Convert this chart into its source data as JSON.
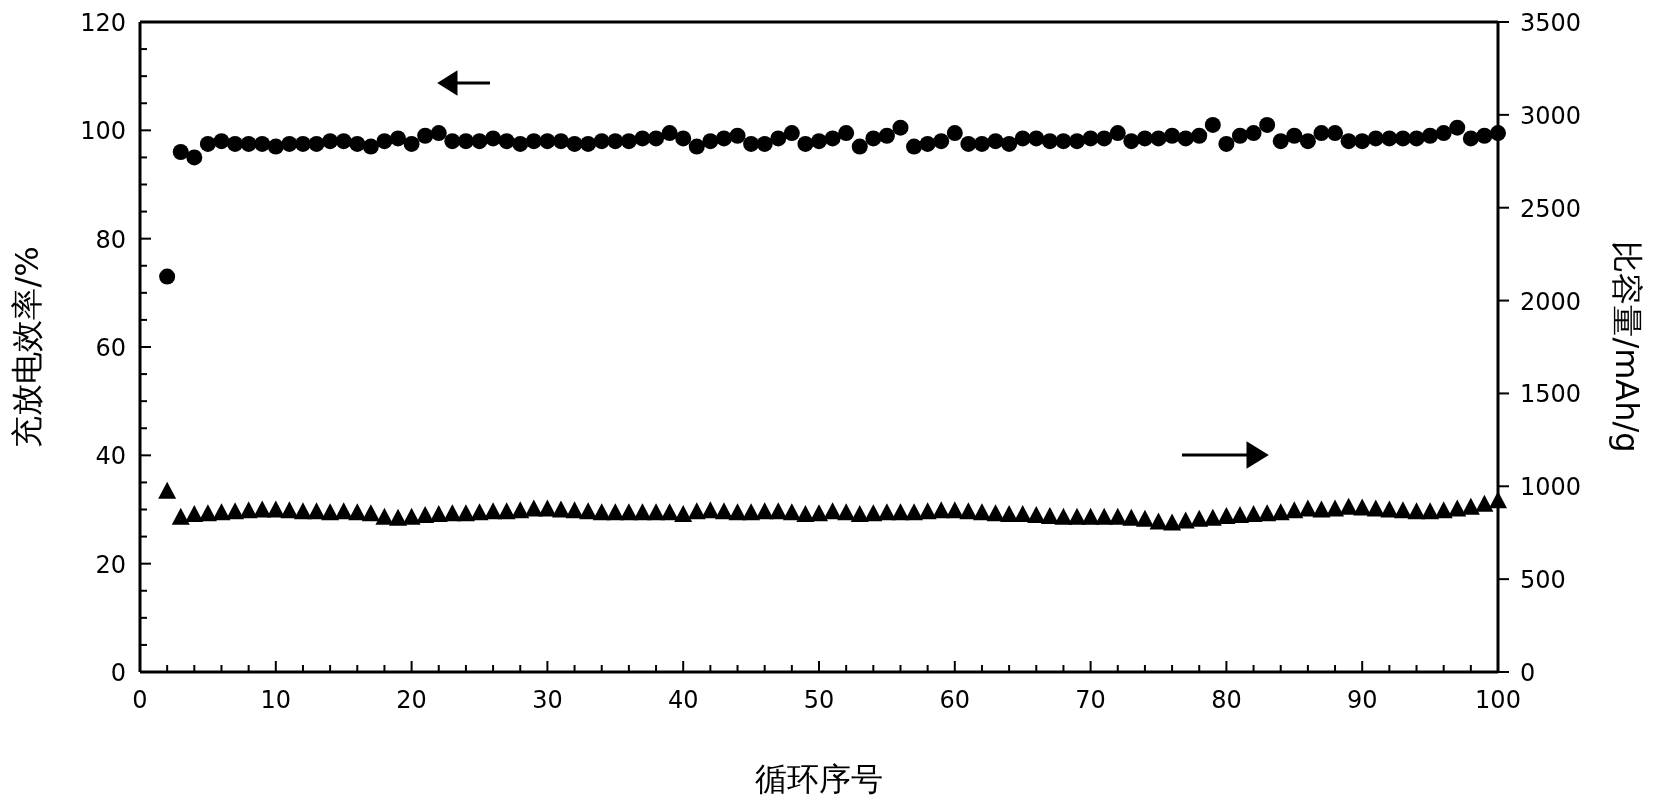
{
  "chart_data": {
    "type": "scatter",
    "xlabel": "循环序号",
    "ylabel": "充放电效率/%",
    "y2label": "比容量/mAh/g",
    "xlim": [
      0,
      100
    ],
    "xticks": [
      0,
      {
        "value": 2,
        "label": null
      },
      {
        "value": 4,
        "label": null
      },
      {
        "value": 6,
        "label": null
      },
      {
        "value": 8,
        "label": null
      },
      10,
      {
        "value": 12,
        "label": null
      },
      {
        "value": 14,
        "label": null
      },
      {
        "value": 16,
        "label": null
      },
      {
        "value": 18,
        "label": null
      },
      20,
      {
        "value": 22,
        "label": null
      },
      {
        "value": 24,
        "label": null
      },
      {
        "value": 26,
        "label": null
      },
      {
        "value": 28,
        "label": null
      },
      30,
      {
        "value": 32,
        "label": null
      },
      {
        "value": 34,
        "label": null
      },
      {
        "value": 36,
        "label": null
      },
      {
        "value": 38,
        "label": null
      },
      40,
      {
        "value": 42,
        "label": null
      },
      {
        "value": 44,
        "label": null
      },
      {
        "value": 46,
        "label": null
      },
      {
        "value": 48,
        "label": null
      },
      50,
      {
        "value": 52,
        "label": null
      },
      {
        "value": 54,
        "label": null
      },
      {
        "value": 56,
        "label": null
      },
      {
        "value": 58,
        "label": null
      },
      60,
      {
        "value": 62,
        "label": null
      },
      {
        "value": 64,
        "label": null
      },
      {
        "value": 66,
        "label": null
      },
      {
        "value": 68,
        "label": null
      },
      70,
      {
        "value": 72,
        "label": null
      },
      {
        "value": 74,
        "label": null
      },
      {
        "value": 76,
        "label": null
      },
      {
        "value": 78,
        "label": null
      },
      80,
      {
        "value": 82,
        "label": null
      },
      {
        "value": 84,
        "label": null
      },
      {
        "value": 86,
        "label": null
      },
      {
        "value": 88,
        "label": null
      },
      90,
      {
        "value": 92,
        "label": null
      },
      {
        "value": 94,
        "label": null
      },
      {
        "value": 96,
        "label": null
      },
      {
        "value": 98,
        "label": null
      },
      100
    ],
    "ylim": [
      0,
      120
    ],
    "yticks": [
      0,
      {
        "value": 5,
        "label": null
      },
      {
        "value": 10,
        "label": null
      },
      {
        "value": 15,
        "label": null
      },
      20,
      {
        "value": 25,
        "label": null
      },
      {
        "value": 30,
        "label": null
      },
      {
        "value": 35,
        "label": null
      },
      40,
      {
        "value": 45,
        "label": null
      },
      {
        "value": 50,
        "label": null
      },
      {
        "value": 55,
        "label": null
      },
      60,
      {
        "value": 65,
        "label": null
      },
      {
        "value": 70,
        "label": null
      },
      {
        "value": 75,
        "label": null
      },
      80,
      {
        "value": 85,
        "label": null
      },
      {
        "value": 90,
        "label": null
      },
      {
        "value": 95,
        "label": null
      },
      100,
      {
        "value": 105,
        "label": null
      },
      {
        "value": 110,
        "label": null
      },
      {
        "value": 115,
        "label": null
      },
      120
    ],
    "y2lim": [
      0,
      3500
    ],
    "y2ticks": [
      0,
      500,
      1000,
      1500,
      2000,
      2500,
      3000,
      3500
    ],
    "x": [
      2,
      3,
      4,
      5,
      6,
      7,
      8,
      9,
      10,
      11,
      12,
      13,
      14,
      15,
      16,
      17,
      18,
      19,
      20,
      21,
      22,
      23,
      24,
      25,
      26,
      27,
      28,
      29,
      30,
      31,
      32,
      33,
      34,
      35,
      36,
      37,
      38,
      39,
      40,
      41,
      42,
      43,
      44,
      45,
      46,
      47,
      48,
      49,
      50,
      51,
      52,
      53,
      54,
      55,
      56,
      57,
      58,
      59,
      60,
      61,
      62,
      63,
      64,
      65,
      66,
      67,
      68,
      69,
      70,
      71,
      72,
      73,
      74,
      75,
      76,
      77,
      78,
      79,
      80,
      81,
      82,
      83,
      84,
      85,
      86,
      87,
      88,
      89,
      90,
      91,
      92,
      93,
      94,
      95,
      96,
      97,
      98,
      99,
      100
    ],
    "series": [
      {
        "color": "#000000",
        "marker": "circle",
        "values": [
          73,
          96,
          95,
          97.5,
          98,
          97.5,
          97.5,
          97.5,
          97,
          97.5,
          97.5,
          97.5,
          98,
          98,
          97.5,
          97,
          98,
          98.5,
          97.5,
          99,
          99.5,
          98,
          98,
          98,
          98.5,
          98,
          97.5,
          98,
          98,
          98,
          97.5,
          97.5,
          98,
          98,
          98,
          98.5,
          98.5,
          99.5,
          98.5,
          97,
          98,
          98.5,
          99,
          97.5,
          97.5,
          98.5,
          99.5,
          97.5,
          98,
          98.5,
          99.5,
          97,
          98.5,
          99,
          100.5,
          97,
          97.5,
          98,
          99.5,
          97.5,
          97.5,
          98,
          97.5,
          98.5,
          98.5,
          98,
          98,
          98,
          98.5,
          98.5,
          99.5,
          98,
          98.5,
          98.5,
          99,
          98.5,
          99,
          101,
          97.5,
          99,
          99.5,
          101,
          98,
          99,
          98,
          99.5,
          99.5,
          98,
          98,
          98.5,
          98.5,
          98.5,
          98.5,
          99,
          99.5,
          100.5,
          98.5,
          99,
          99.5
        ]
      },
      {
        "color": "#000000",
        "marker": "triangle",
        "axis": "y2",
        "values": [
          970,
          830,
          845,
          850,
          855,
          860,
          865,
          870,
          870,
          865,
          860,
          860,
          855,
          860,
          855,
          850,
          830,
          825,
          830,
          840,
          845,
          850,
          850,
          855,
          860,
          860,
          865,
          875,
          875,
          870,
          865,
          860,
          855,
          855,
          855,
          855,
          855,
          855,
          845,
          860,
          865,
          860,
          855,
          855,
          860,
          860,
          855,
          845,
          850,
          860,
          855,
          845,
          850,
          855,
          855,
          855,
          860,
          865,
          865,
          860,
          855,
          850,
          845,
          845,
          840,
          835,
          830,
          830,
          830,
          830,
          830,
          825,
          820,
          805,
          800,
          810,
          820,
          825,
          835,
          840,
          845,
          850,
          855,
          865,
          875,
          870,
          875,
          885,
          880,
          875,
          870,
          865,
          860,
          860,
          865,
          875,
          885,
          900,
          920
        ]
      }
    ]
  }
}
